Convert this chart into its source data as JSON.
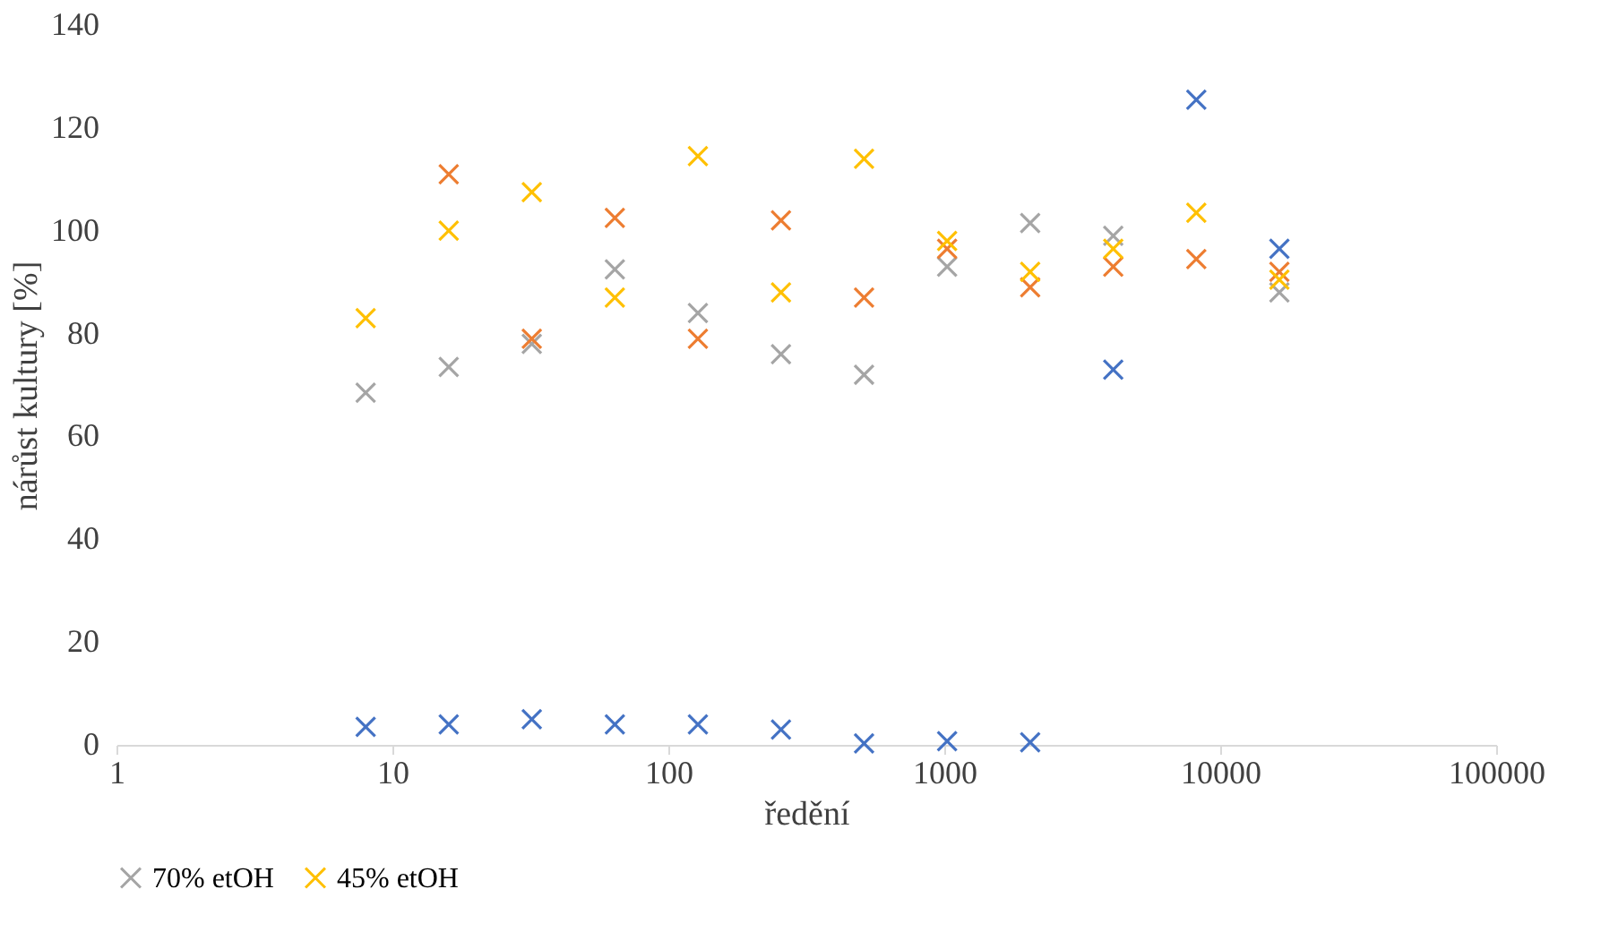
{
  "chart_data": {
    "type": "scatter",
    "xlabel": "ředění",
    "ylabel": "nárůst kultury [%]",
    "x": [
      8,
      16,
      32,
      64,
      128,
      256,
      512,
      1024,
      2048,
      4096,
      8192,
      16384
    ],
    "series": [
      {
        "color": "#4472c4",
        "values": [
          3.5,
          4,
          5,
          4,
          4,
          3,
          0.3,
          0.7,
          0.5,
          73,
          125.5,
          96.5
        ]
      },
      {
        "name": "70% etOH",
        "color": "#a5a5a5",
        "values": [
          68.5,
          73.5,
          78,
          92.5,
          84,
          76,
          72,
          93,
          101.5,
          99,
          null,
          88
        ]
      },
      {
        "color": "#ed7d31",
        "values": [
          null,
          111,
          79,
          102.5,
          79,
          102,
          87,
          96.5,
          89,
          93,
          94.5,
          92
        ]
      },
      {
        "name": "45% etOH",
        "color": "#ffc000",
        "values": [
          83,
          100,
          107.5,
          87,
          114.5,
          88,
          114,
          98,
          92,
          96.5,
          103.5,
          90.5
        ]
      }
    ],
    "log": "x",
    "xlim": [
      1,
      100000
    ],
    "xticks": [
      1,
      10,
      100,
      1000,
      10000,
      100000
    ],
    "ylim": [
      0,
      140
    ],
    "yticks": [
      0,
      20,
      40,
      60,
      80,
      100,
      120,
      140
    ],
    "marker": "cross",
    "grid": false,
    "legend": "bottom"
  }
}
